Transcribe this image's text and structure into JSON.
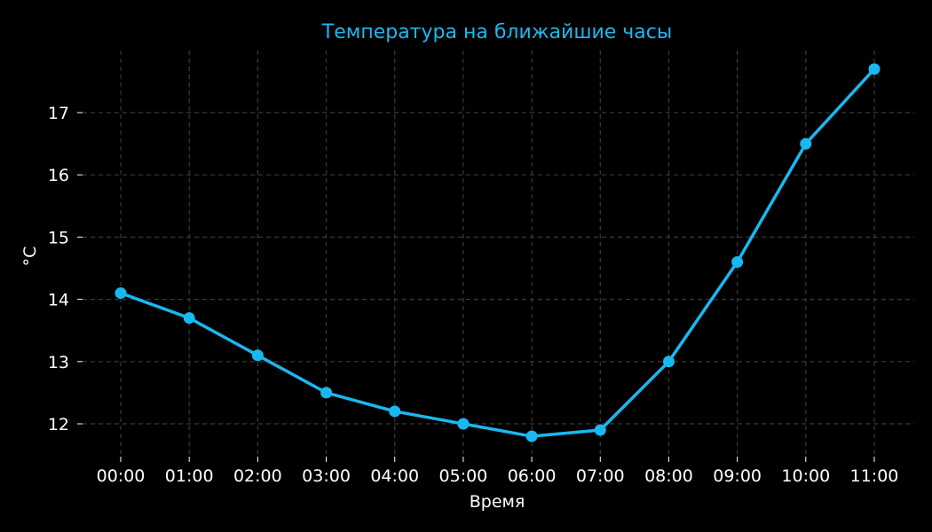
{
  "chart_data": {
    "type": "line",
    "title": "Температура на ближайшие часы",
    "xlabel": "Время",
    "ylabel": "°C",
    "categories": [
      "00:00",
      "01:00",
      "02:00",
      "03:00",
      "04:00",
      "05:00",
      "06:00",
      "07:00",
      "08:00",
      "09:00",
      "10:00",
      "11:00"
    ],
    "series": [
      {
        "values": [
          14.1,
          13.7,
          13.1,
          12.5,
          12.2,
          12.0,
          11.8,
          11.9,
          13.0,
          14.6,
          16.5,
          17.7
        ]
      }
    ],
    "yticks": [
      12,
      13,
      14,
      15,
      16,
      17
    ],
    "ylim": [
      11.5,
      18.0
    ],
    "grid": true,
    "grid_style": "dashed",
    "colors": {
      "background": "#000000",
      "line": "#1ab8f0",
      "title": "#1ab8f0",
      "text": "#ffffff",
      "grid": "#3a3a3a"
    }
  }
}
